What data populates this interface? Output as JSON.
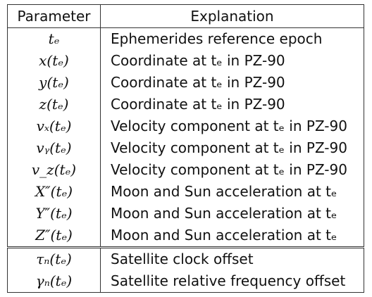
{
  "table": {
    "headers": {
      "parameter": "Parameter",
      "explanation": "Explanation"
    },
    "rows": [
      {
        "parameter": "tₑ",
        "explanation": "Ephemerides reference epoch"
      },
      {
        "parameter": "x(tₑ)",
        "explanation": "Coordinate at tₑ in PZ-90"
      },
      {
        "parameter": "y(tₑ)",
        "explanation": "Coordinate at tₑ in PZ-90"
      },
      {
        "parameter": "z(tₑ)",
        "explanation": "Coordinate at tₑ in PZ-90"
      },
      {
        "parameter": "vₓ(tₑ)",
        "explanation": "Velocity component at tₑ in PZ-90"
      },
      {
        "parameter": "vᵧ(tₑ)",
        "explanation": "Velocity component at tₑ in PZ-90"
      },
      {
        "parameter": "v_z(tₑ)",
        "explanation": "Velocity component at tₑ in PZ-90"
      },
      {
        "parameter": "X″(tₑ)",
        "explanation": "Moon and Sun acceleration at tₑ"
      },
      {
        "parameter": "Y″(tₑ)",
        "explanation": "Moon and Sun acceleration at tₑ"
      },
      {
        "parameter": "Z″(tₑ)",
        "explanation": "Moon and Sun acceleration at tₑ"
      },
      {
        "parameter": "τₙ(tₑ)",
        "explanation": "Satellite clock offset"
      },
      {
        "parameter": "γₙ(tₑ)",
        "explanation": "Satellite relative frequency offset"
      }
    ]
  }
}
